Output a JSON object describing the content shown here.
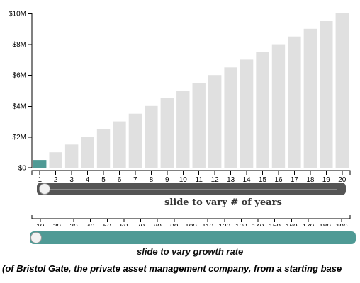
{
  "chart_data": {
    "type": "bar",
    "categories": [
      "1",
      "2",
      "3",
      "4",
      "5",
      "6",
      "7",
      "8",
      "9",
      "10",
      "11",
      "12",
      "13",
      "14",
      "15",
      "16",
      "17",
      "18",
      "19",
      "20"
    ],
    "values": [
      0.5,
      1.0,
      1.5,
      2.0,
      2.5,
      3.0,
      3.5,
      4.0,
      4.5,
      5.0,
      5.5,
      6.0,
      6.5,
      7.0,
      7.5,
      8.0,
      8.5,
      9.0,
      9.5,
      10.0
    ],
    "highlighted_count": 1,
    "y_ticks": [
      "$0",
      "$2M",
      "$4M",
      "$6M",
      "$8M",
      "$10M"
    ],
    "y_tick_values": [
      0,
      2,
      4,
      6,
      8,
      10
    ],
    "ylim": [
      0,
      10
    ],
    "xlabel": "",
    "ylabel": "",
    "title": "",
    "grid": false,
    "colors": {
      "highlight": "#4f9a95",
      "default": "#e0e0e0"
    }
  },
  "years_slider": {
    "label": "slide to vary # of years",
    "value": 1,
    "min": 1,
    "max": 20,
    "track_color": "#555555"
  },
  "growth_slider": {
    "label": "slide to vary growth rate",
    "ticks": [
      "10",
      "20",
      "30",
      "40",
      "50",
      "60",
      "70",
      "80",
      "90",
      "100",
      "110",
      "120",
      "130",
      "140",
      "150",
      "160",
      "170",
      "180",
      "190"
    ],
    "value": 10,
    "min": 10,
    "max": 190,
    "track_color": "#4f9a95"
  },
  "footnote": "(of Bristol Gate, the private asset management company, from a starting base"
}
